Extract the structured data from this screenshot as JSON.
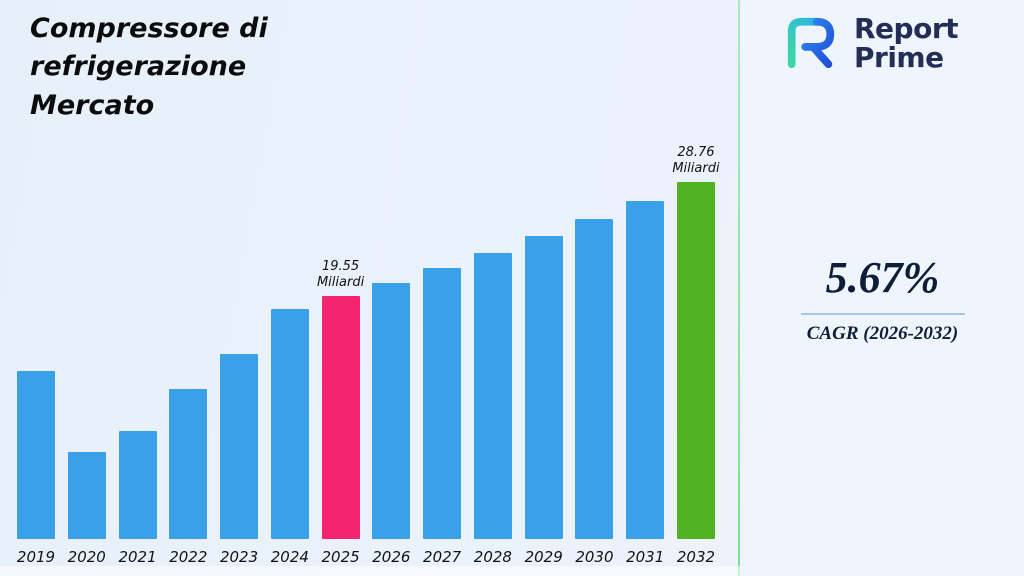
{
  "header": {
    "title_lines": [
      "Compressore di",
      "refrigerazione",
      "Mercato"
    ]
  },
  "brand": {
    "name_line1": "Report",
    "name_line2": "Prime"
  },
  "cagr": {
    "value": "5.67%",
    "label": "CAGR (2026-2032)"
  },
  "colors": {
    "bar_default": "#3aa0e8",
    "bar_highlight_2025": "#f5256d",
    "bar_highlight_2032": "#4fb322",
    "separator_green": "#7fdf92",
    "brand_navy": "#232d56"
  },
  "chart_data": {
    "type": "bar",
    "title": "Compressore di refrigerazione Mercato",
    "xlabel": "",
    "ylabel": "Miliardi",
    "unit": "Miliardi",
    "ylim": [
      0,
      29
    ],
    "grid": false,
    "legend": "none",
    "categories": [
      "2019",
      "2020",
      "2021",
      "2022",
      "2023",
      "2024",
      "2025",
      "2026",
      "2027",
      "2028",
      "2029",
      "2030",
      "2031",
      "2032"
    ],
    "values": [
      13.5,
      7.0,
      8.7,
      12.1,
      14.9,
      18.5,
      19.55,
      20.66,
      21.83,
      23.07,
      24.37,
      25.76,
      27.22,
      28.76
    ],
    "bar_color": "#3aa0e8",
    "highlights": {
      "2025": {
        "color": "#f5256d",
        "label_lines": [
          "19.55",
          "Miliardi"
        ]
      },
      "2032": {
        "color": "#4fb322",
        "label_lines": [
          "28.76",
          "Miliardi"
        ]
      }
    },
    "annotations": [
      {
        "x": "2025",
        "text": "19.55 Miliardi"
      },
      {
        "x": "2032",
        "text": "28.76 Miliardi"
      }
    ]
  }
}
